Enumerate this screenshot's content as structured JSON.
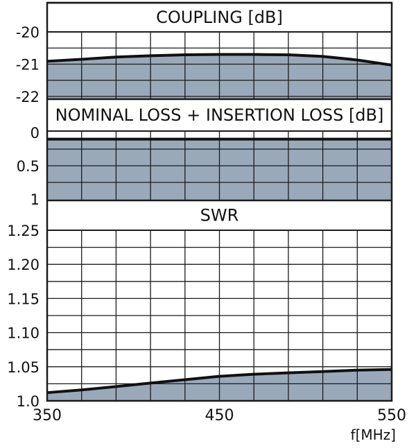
{
  "chart_data": {
    "type": "area",
    "x_axis": {
      "range": [
        350,
        550
      ],
      "tick_labels": [
        "350",
        "450",
        "550"
      ],
      "tick_values": [
        350,
        450,
        550
      ],
      "grid_values": [
        350,
        370,
        390,
        410,
        430,
        450,
        470,
        490,
        510,
        530,
        550
      ],
      "unit_label": "f[MHz]"
    },
    "colors": {
      "fill": "#9aa9ba",
      "line": "#111111",
      "grid": "#1a1a1a",
      "title_band": "#ffffff"
    },
    "panels": [
      {
        "id": "coupling",
        "title": "COUPLING [dB]",
        "y_range": [
          -22.5,
          -19.5
        ],
        "y_reversed": true,
        "y_tick_labels": [
          "-20",
          "-21",
          "-22"
        ],
        "y_tick_values": [
          -20,
          -21,
          -22
        ],
        "grid_values": [
          -20,
          -20.5,
          -21,
          -21.5,
          -22
        ],
        "series": {
          "x": [
            350,
            370,
            390,
            410,
            430,
            450,
            470,
            490,
            510,
            530,
            550
          ],
          "y": [
            -20.91,
            -20.85,
            -20.78,
            -20.74,
            -20.71,
            -20.7,
            -20.7,
            -20.71,
            -20.76,
            -20.87,
            -21.03
          ]
        }
      },
      {
        "id": "loss",
        "title": "NOMINAL LOSS + INSERTION LOSS [dB]",
        "y_range": [
          -0.15,
          1.0
        ],
        "y_reversed": false,
        "y_tick_labels": [
          "0",
          "0.5",
          "1"
        ],
        "y_tick_values": [
          0,
          0.5,
          1
        ],
        "grid_values": [
          0.25,
          0.5,
          0.75
        ],
        "series": {
          "x": [
            350,
            450,
            550
          ],
          "y": [
            0.1,
            0.1,
            0.1
          ]
        }
      },
      {
        "id": "swr",
        "title": "SWR",
        "y_range": [
          1.0,
          1.25
        ],
        "y_reversed": false,
        "y_tick_labels": [
          "1.25",
          "1.20",
          "1.15",
          "1.10",
          "1.05",
          "1.0"
        ],
        "y_tick_values": [
          1.25,
          1.2,
          1.15,
          1.1,
          1.05,
          1.0
        ],
        "grid_values": [
          1.025,
          1.05,
          1.075,
          1.1,
          1.125,
          1.15,
          1.175,
          1.2,
          1.225
        ],
        "series": {
          "x": [
            350,
            370,
            390,
            410,
            430,
            450,
            470,
            490,
            510,
            530,
            550
          ],
          "y": [
            1.012,
            1.016,
            1.021,
            1.026,
            1.031,
            1.036,
            1.039,
            1.041,
            1.043,
            1.045,
            1.046
          ]
        }
      }
    ]
  }
}
